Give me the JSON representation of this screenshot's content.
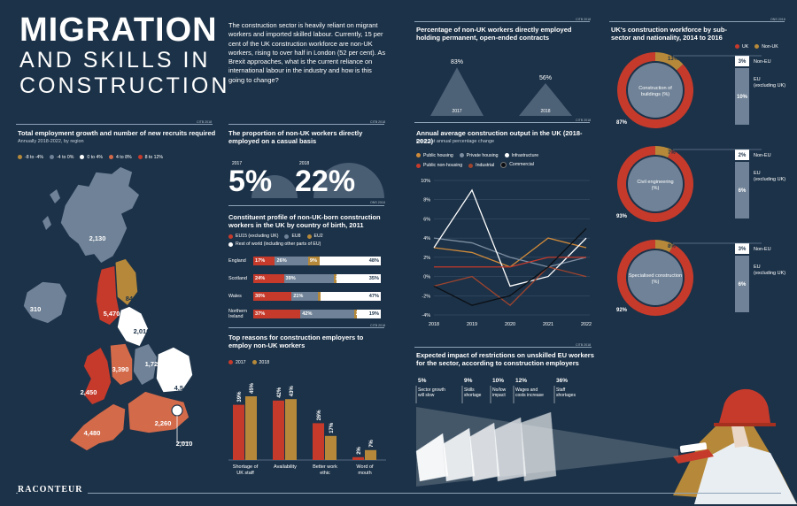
{
  "title": {
    "line1": "MIGRATION",
    "line2": "AND SKILLS IN",
    "line3": "CONSTRUCTION"
  },
  "intro": "The construction sector is heavily reliant on migrant workers and imported skilled labour. Currently, 15 per cent of the UK construction workforce are non-UK workers, rising to over half in London (52 per cent). As Brexit approaches, what is the current reliance on international labour in the industry and how is this going to change?",
  "brand": "RACONTEUR",
  "colors": {
    "bg": "#1c3248",
    "red": "#c63a2b",
    "gold": "#b6893a",
    "slate": "#6f8297",
    "white": "#ffffff"
  },
  "map": {
    "source": "CITB 2018",
    "title": "Total employment growth and number of new recruits required",
    "subtitle": "Annually 2018-2022, by region",
    "legend": [
      "-8 to -4%",
      "-4 to 0%",
      "0 to 4%",
      "4 to 8%",
      "8 to 12%"
    ],
    "legend_colors": [
      "#b6893a",
      "#6f8297",
      "#ffffff",
      "#d36a4a",
      "#c63a2b"
    ],
    "values": [
      "2,130",
      "310",
      "840",
      "5,470",
      "2,010",
      "1,720",
      "2,450",
      "3,390",
      "4,540",
      "4,480",
      "2,260",
      "2,010"
    ]
  },
  "casual": {
    "title": "The proportion of non-UK workers directly employed on a casual basis",
    "year1": "2017",
    "value1": "5%",
    "pct1": 5,
    "year2": "2018",
    "value2": "22%",
    "pct2": 22,
    "source": "ONS 2018"
  },
  "profile": {
    "title": "Constituent profile of non-UK-born construction workers in the UK by country of birth, 2011",
    "legend": [
      "EU15 (excluding UK)",
      "EU8",
      "EU2",
      "Rest of world (including other parts of EU)"
    ],
    "rows": [
      {
        "label": "England",
        "values": [
          17,
          26,
          9,
          48
        ],
        "labels": [
          "17%",
          "26%",
          "9%",
          "48%"
        ]
      },
      {
        "label": "Scotland",
        "values": [
          24,
          39,
          2,
          35
        ],
        "labels": [
          "24%",
          "39%",
          "2%",
          "35%"
        ]
      },
      {
        "label": "Wales",
        "values": [
          30,
          21,
          2,
          47
        ],
        "labels": [
          "30%",
          "21%",
          "",
          "47%"
        ]
      },
      {
        "label": "Northern Ireland",
        "values": [
          37,
          42,
          2,
          19
        ],
        "labels": [
          "37%",
          "42%",
          "2%",
          "19%"
        ]
      }
    ]
  },
  "reasons": {
    "title": "Top reasons for construction employers to employ non-UK workers",
    "source": "CITB 2018",
    "legend": [
      "2017",
      "2018"
    ],
    "categories": [
      "Shortage of UK staff",
      "Availability",
      "Better work ethic",
      "Word of mouth"
    ],
    "series_2017": [
      39,
      42,
      26,
      2
    ],
    "series_2018": [
      45,
      43,
      17,
      7
    ],
    "labels_2017": [
      "39%",
      "42%",
      "26%",
      "2%"
    ],
    "labels_2018": [
      "45%",
      "43%",
      "17%",
      "7%"
    ]
  },
  "permanent": {
    "title": "Percentage of non-UK workers directly employed holding permanent, open-ended contracts",
    "source": "CITB 2018",
    "year1": "2017",
    "value1": "83%",
    "pct1": 83,
    "year2": "2018",
    "value2": "56%",
    "pct2": 56
  },
  "output": {
    "title": "Annual average construction output in the UK (2018-2022)",
    "subtitle": "Forecast annual percentage change",
    "source": "CITB 2018",
    "legend": [
      "Public housing",
      "Private housing",
      "Infrastructure",
      "Public non-housing",
      "Industrial",
      "Commercial"
    ]
  },
  "chart_data": [
    {
      "type": "line",
      "title": "Annual average construction output in the UK (2018-2022)",
      "subtitle": "Forecast annual percentage change",
      "x": [
        "2018",
        "2019",
        "2020",
        "2021",
        "2022"
      ],
      "ylim": [
        -4,
        10
      ],
      "yticks": [
        "10%",
        "8%",
        "6%",
        "4%",
        "2%",
        "0%",
        "-2%",
        "-4%"
      ],
      "series": [
        {
          "name": "Public housing",
          "color": "#d08a3a",
          "values": [
            3,
            2.5,
            1,
            4,
            3
          ]
        },
        {
          "name": "Private housing",
          "color": "#7d8ea1",
          "values": [
            4,
            3.5,
            2,
            1,
            2
          ]
        },
        {
          "name": "Infrastructure",
          "color": "#ffffff",
          "values": [
            3,
            9,
            -1,
            0,
            4
          ]
        },
        {
          "name": "Public non-housing",
          "color": "#c63a2b",
          "values": [
            1,
            1,
            1,
            2,
            2
          ]
        },
        {
          "name": "Industrial",
          "color": "#a0442e",
          "values": [
            -1,
            0,
            -3,
            1,
            0
          ]
        },
        {
          "name": "Commercial",
          "color": "#0b0f14",
          "values": [
            -1,
            -3,
            -2,
            1,
            5
          ]
        }
      ]
    },
    {
      "type": "bar",
      "title": "Top reasons for construction employers to employ non-UK workers",
      "categories": [
        "Shortage of UK staff",
        "Availability",
        "Better work ethic",
        "Word of mouth"
      ],
      "series": [
        {
          "name": "2017",
          "values": [
            39,
            42,
            26,
            2
          ]
        },
        {
          "name": "2018",
          "values": [
            45,
            43,
            17,
            7
          ]
        }
      ]
    },
    {
      "type": "bar",
      "title": "Constituent profile of non-UK-born construction workers in the UK by country of birth, 2011",
      "categories": [
        "England",
        "Scotland",
        "Wales",
        "Northern Ireland"
      ],
      "series": [
        {
          "name": "EU15 (excluding UK)",
          "values": [
            17,
            24,
            30,
            37
          ]
        },
        {
          "name": "EU8",
          "values": [
            26,
            39,
            21,
            42
          ]
        },
        {
          "name": "EU2",
          "values": [
            9,
            2,
            2,
            2
          ]
        },
        {
          "name": "Rest of world (including other parts of EU)",
          "values": [
            48,
            35,
            47,
            19
          ]
        }
      ]
    },
    {
      "type": "pie",
      "title": "UK's construction workforce by sub-sector and nationality, 2014 to 2016",
      "donuts": [
        {
          "label": "Construction of buildings (%)",
          "uk": 87,
          "non_uk": 13,
          "non_eu": 3,
          "eu": 10
        },
        {
          "label": "Civil engineering (%)",
          "uk": 93,
          "non_uk": 7,
          "non_eu": 2,
          "eu": 6
        },
        {
          "label": "Specialised construction (%)",
          "uk": 92,
          "non_uk": 8,
          "non_eu": 3,
          "eu": 6
        }
      ]
    },
    {
      "type": "bar",
      "title": "Expected impact of restrictions on unskilled EU workers for the sector, according to construction employers",
      "categories": [
        "Sector growth will slow",
        "Skills shortage",
        "No/low impact",
        "Wages and costs increase",
        "Staff shortages"
      ],
      "values": [
        5,
        9,
        10,
        12,
        36
      ]
    }
  ],
  "workforce": {
    "title": "UK's construction workforce by sub-sector and nationality, 2014 to 2016",
    "source": "ONS 2018",
    "legend": [
      "UK",
      "Non-UK"
    ],
    "donuts": [
      {
        "label": "Construction of buildings (%)",
        "uk_label": "87%",
        "nonuk_label": "13%",
        "uk": 87,
        "nonuk": 13,
        "noneu_label": "3%",
        "eu_label": "10%"
      },
      {
        "label": "Civil engineering (%)",
        "uk_label": "93%",
        "nonuk_label": "7%",
        "uk": 93,
        "nonuk": 7,
        "noneu_label": "2%",
        "eu_label": "6%"
      },
      {
        "label": "Specialised construction (%)",
        "uk_label": "92%",
        "nonuk_label": "8%",
        "uk": 92,
        "nonuk": 8,
        "noneu_label": "3%",
        "eu_label": "6%"
      }
    ],
    "noneu": "Non-EU",
    "eu": "EU (excluding UK)"
  },
  "impact": {
    "title": "Expected impact of restrictions on unskilled EU workers for the sector, according to construction employers",
    "source": "CITB 2018",
    "items": [
      {
        "pct": "5%",
        "label": "Sector growth will slow"
      },
      {
        "pct": "9%",
        "label": "Skills shortage"
      },
      {
        "pct": "10%",
        "label": "No/low impact"
      },
      {
        "pct": "12%",
        "label": "Wages and costs increase"
      },
      {
        "pct": "36%",
        "label": "Staff shortages"
      }
    ]
  }
}
